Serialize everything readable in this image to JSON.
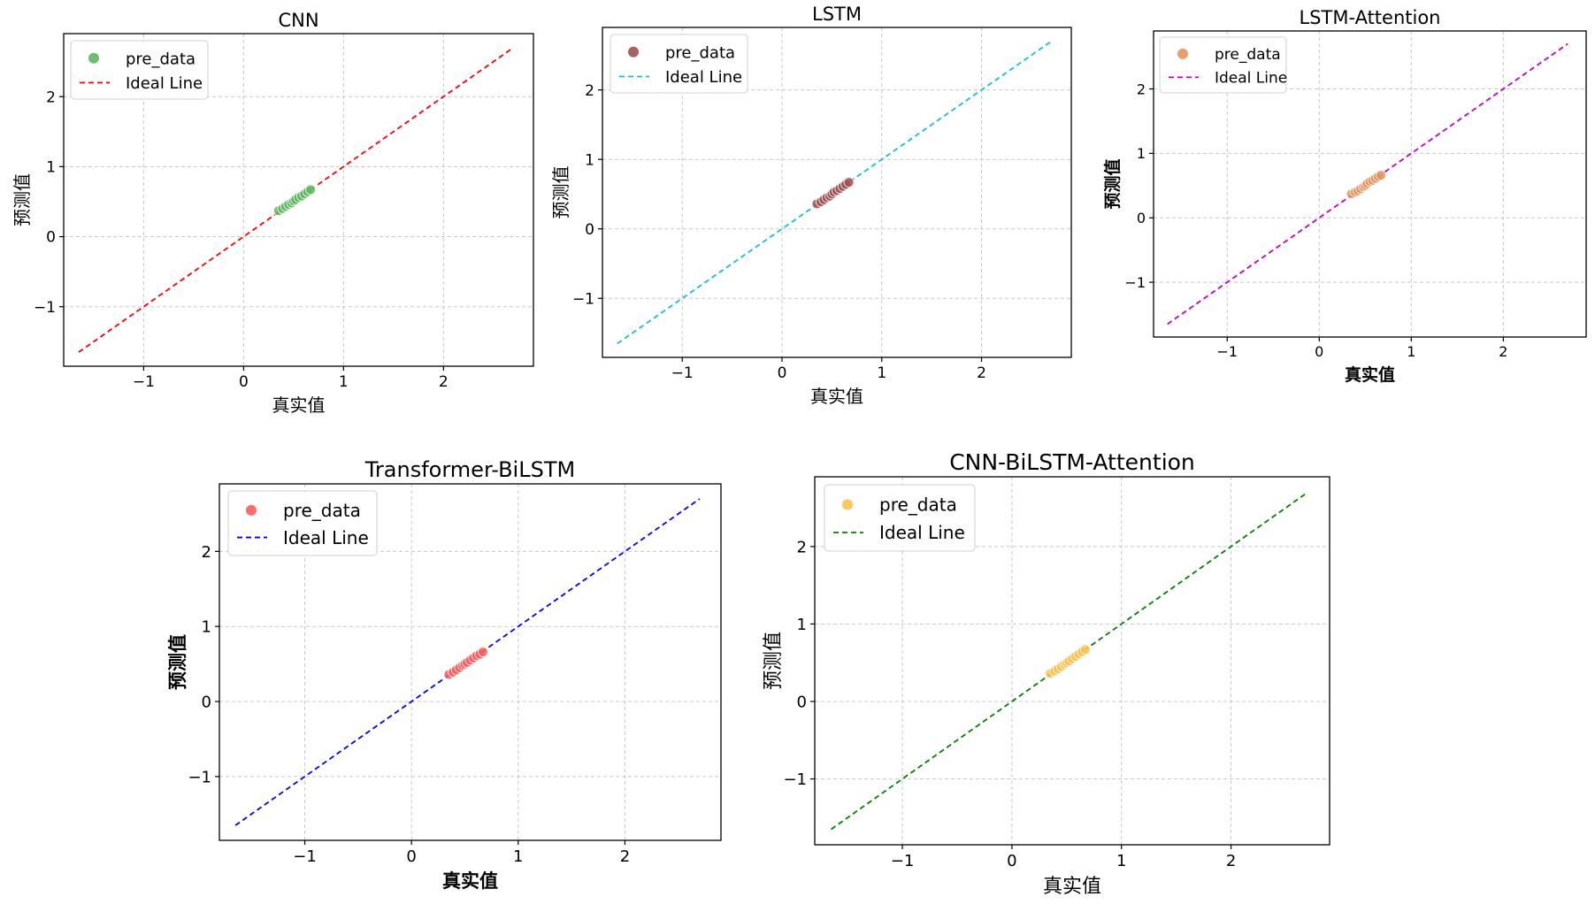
{
  "chart_data": [
    {
      "type": "scatter",
      "title": "CNN",
      "xlabel": "真实值",
      "ylabel": "预测值",
      "label_weight": "normal",
      "xlim": [
        -1.8,
        2.9
      ],
      "ylim": [
        -1.85,
        2.9
      ],
      "xticks": [
        -1,
        0,
        1,
        2
      ],
      "yticks": [
        -1,
        0,
        1,
        2
      ],
      "xtick_labels": [
        "−1",
        "0",
        "1",
        "2"
      ],
      "ytick_labels": [
        "−1",
        "0",
        "1",
        "2"
      ],
      "ideal_line": {
        "name": "Ideal Line",
        "x": [
          -1.65,
          2.7
        ],
        "y": [
          -1.65,
          2.7
        ],
        "color": "#ff0000"
      },
      "series": [
        {
          "name": "pre_data",
          "color": "#5cb85c",
          "x": [
            0.35,
            0.39,
            0.42,
            0.45,
            0.48,
            0.5,
            0.52,
            0.55,
            0.58,
            0.61,
            0.64,
            0.67
          ],
          "y": [
            0.37,
            0.4,
            0.43,
            0.46,
            0.48,
            0.51,
            0.53,
            0.56,
            0.58,
            0.61,
            0.64,
            0.67
          ]
        }
      ],
      "legend": "top-left"
    },
    {
      "type": "scatter",
      "title": "LSTM",
      "xlabel": "真实值",
      "ylabel": "预测值",
      "label_weight": "normal",
      "xlim": [
        -1.8,
        2.9
      ],
      "ylim": [
        -1.85,
        2.9
      ],
      "xticks": [
        -1,
        0,
        1,
        2
      ],
      "yticks": [
        -1,
        0,
        1,
        2
      ],
      "xtick_labels": [
        "−1",
        "0",
        "1",
        "2"
      ],
      "ytick_labels": [
        "−1",
        "0",
        "1",
        "2"
      ],
      "ideal_line": {
        "name": "Ideal Line",
        "x": [
          -1.65,
          2.7
        ],
        "y": [
          -1.65,
          2.7
        ],
        "color": "#17becf"
      },
      "series": [
        {
          "name": "pre_data",
          "color": "#a0504f",
          "x": [
            0.35,
            0.39,
            0.42,
            0.45,
            0.48,
            0.5,
            0.52,
            0.55,
            0.58,
            0.61,
            0.64,
            0.67
          ],
          "y": [
            0.36,
            0.39,
            0.42,
            0.45,
            0.47,
            0.5,
            0.53,
            0.55,
            0.58,
            0.61,
            0.64,
            0.67
          ]
        }
      ],
      "legend": "top-left"
    },
    {
      "type": "scatter",
      "title": "LSTM-Attention",
      "xlabel": "真实值",
      "ylabel": "预测值",
      "label_weight": "bold",
      "xlim": [
        -1.8,
        2.9
      ],
      "ylim": [
        -1.85,
        2.9
      ],
      "xticks": [
        -1,
        0,
        1,
        2
      ],
      "yticks": [
        -1,
        0,
        1,
        2
      ],
      "xtick_labels": [
        "−1",
        "0",
        "1",
        "2"
      ],
      "ytick_labels": [
        "−1",
        "0",
        "1",
        "2"
      ],
      "ideal_line": {
        "name": "Ideal Line",
        "x": [
          -1.65,
          2.7
        ],
        "y": [
          -1.65,
          2.7
        ],
        "color": "#c000c0"
      },
      "series": [
        {
          "name": "pre_data",
          "color": "#e8935c",
          "x": [
            0.35,
            0.39,
            0.42,
            0.45,
            0.48,
            0.5,
            0.52,
            0.55,
            0.58,
            0.61,
            0.64,
            0.67
          ],
          "y": [
            0.37,
            0.4,
            0.42,
            0.45,
            0.48,
            0.5,
            0.53,
            0.56,
            0.58,
            0.61,
            0.64,
            0.66
          ]
        }
      ],
      "legend": "top-left"
    },
    {
      "type": "scatter",
      "title": "Transformer-BiLSTM",
      "xlabel": "真实值",
      "ylabel": "预测值",
      "label_weight": "bold",
      "xlim": [
        -1.8,
        2.9
      ],
      "ylim": [
        -1.85,
        2.9
      ],
      "xticks": [
        -1,
        0,
        1,
        2
      ],
      "yticks": [
        -1,
        0,
        1,
        2
      ],
      "xtick_labels": [
        "−1",
        "0",
        "1",
        "2"
      ],
      "ytick_labels": [
        "−1",
        "0",
        "1",
        "2"
      ],
      "ideal_line": {
        "name": "Ideal Line",
        "x": [
          -1.65,
          2.7
        ],
        "y": [
          -1.65,
          2.7
        ],
        "color": "#0000ff"
      },
      "series": [
        {
          "name": "pre_data",
          "color": "#ff5a5a",
          "x": [
            0.35,
            0.39,
            0.42,
            0.45,
            0.48,
            0.5,
            0.52,
            0.55,
            0.58,
            0.61,
            0.64,
            0.67
          ],
          "y": [
            0.36,
            0.39,
            0.42,
            0.45,
            0.48,
            0.5,
            0.52,
            0.55,
            0.58,
            0.61,
            0.63,
            0.66
          ]
        }
      ],
      "legend": "top-left"
    },
    {
      "type": "scatter",
      "title": "CNN-BiLSTM-Attention",
      "xlabel": "真实值",
      "ylabel": "预测值",
      "label_weight": "normal",
      "xlim": [
        -1.8,
        2.9
      ],
      "ylim": [
        -1.85,
        2.9
      ],
      "xticks": [
        -1,
        0,
        1,
        2
      ],
      "yticks": [
        -1,
        0,
        1,
        2
      ],
      "xtick_labels": [
        "−1",
        "0",
        "1",
        "2"
      ],
      "ytick_labels": [
        "−1",
        "0",
        "1",
        "2"
      ],
      "ideal_line": {
        "name": "Ideal Line",
        "x": [
          -1.65,
          2.7
        ],
        "y": [
          -1.65,
          2.7
        ],
        "color": "#008000"
      },
      "series": [
        {
          "name": "pre_data",
          "color": "#ffc04d",
          "x": [
            0.35,
            0.39,
            0.42,
            0.45,
            0.48,
            0.5,
            0.52,
            0.55,
            0.58,
            0.61,
            0.64,
            0.67
          ],
          "y": [
            0.36,
            0.39,
            0.42,
            0.45,
            0.48,
            0.5,
            0.52,
            0.55,
            0.58,
            0.61,
            0.64,
            0.67
          ]
        }
      ],
      "legend": "top-left"
    }
  ]
}
